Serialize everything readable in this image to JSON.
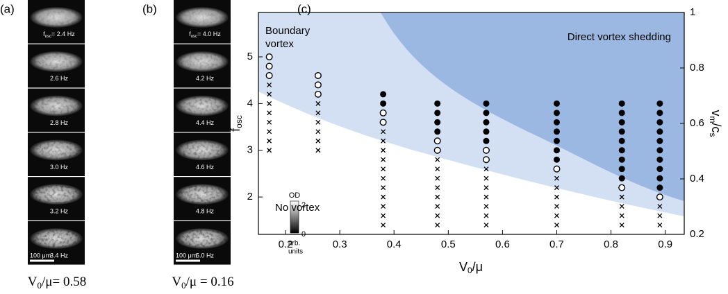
{
  "panels": {
    "a": {
      "label": "(a)",
      "first_label": {
        "symbol": "f",
        "sub": "osc",
        "text": "= 2.4 Hz"
      },
      "frame_labels": [
        "2.6 Hz",
        "2.8 Hz",
        "3.0 Hz",
        "3.2 Hz",
        "3.4 Hz"
      ],
      "scale_bar": "100 μm",
      "caption": {
        "symbol": "V",
        "sub": "0",
        "text": "/μ= 0.58"
      }
    },
    "b": {
      "label": "(b)",
      "first_label": {
        "symbol": "f",
        "sub": "osc",
        "text": "= 4.0 Hz"
      },
      "frame_labels": [
        "4.2 Hz",
        "4.4 Hz",
        "4.6 Hz",
        "4.8 Hz",
        "5.0 Hz"
      ],
      "scale_bar": "100 μm",
      "caption": {
        "symbol": "V",
        "sub": "0",
        "text": "/μ = 0.16"
      }
    },
    "colorbar": {
      "title": "OD",
      "max": "2",
      "min": "0",
      "unit1": "arb.",
      "unit2": "units"
    }
  },
  "chart_data": {
    "type": "scatter",
    "panel_label": "(c)",
    "xlabel": {
      "symbol": "V",
      "sub": "0",
      "text": "/μ"
    },
    "ylabel": {
      "symbol": "f",
      "sub": "osc"
    },
    "y2label": {
      "text1": "v",
      "sub1": "m",
      "text2": "/c",
      "sub2": "s"
    },
    "annotations": [
      "Boundary",
      "vortex",
      "Direct vortex shedding",
      "No vortex"
    ],
    "xlim": [
      0.15,
      0.935
    ],
    "xticks": [
      0.2,
      0.3,
      0.4,
      0.5,
      0.6,
      0.7,
      0.8,
      0.9
    ],
    "ylim": [
      1.2,
      5.95
    ],
    "yticks": [
      2,
      3,
      4,
      5
    ],
    "y2lim": [
      0.2,
      1
    ],
    "y2ticks": [
      0.2,
      0.4,
      0.6,
      0.8,
      1
    ],
    "series": [
      {
        "marker": "cross",
        "color": "#000",
        "x": [
          0.17,
          0.17,
          0.17,
          0.17,
          0.17,
          0.17,
          0.17,
          0.17,
          0.26,
          0.26,
          0.26,
          0.26,
          0.26,
          0.26,
          0.38,
          0.38,
          0.38,
          0.38,
          0.38,
          0.38,
          0.38,
          0.38,
          0.38,
          0.38,
          0.38,
          0.48,
          0.48,
          0.48,
          0.48,
          0.48,
          0.48,
          0.48,
          0.48,
          0.57,
          0.57,
          0.57,
          0.57,
          0.57,
          0.57,
          0.57,
          0.7,
          0.7,
          0.7,
          0.7,
          0.7,
          0.7,
          0.82,
          0.82,
          0.82,
          0.82,
          0.89,
          0.89,
          0.89
        ],
        "values": [
          3,
          3.2,
          3.4,
          3.6,
          3.8,
          4,
          4.2,
          4.4,
          3,
          3.2,
          3.4,
          3.6,
          3.8,
          4,
          1.4,
          1.6,
          1.8,
          2,
          2.2,
          2.4,
          2.6,
          2.8,
          3,
          3.2,
          3.4,
          1.4,
          1.6,
          1.8,
          2,
          2.2,
          2.4,
          2.6,
          2.8,
          1.4,
          1.6,
          1.8,
          2,
          2.2,
          2.4,
          2.6,
          1.4,
          1.6,
          1.8,
          2,
          2.2,
          2.4,
          1.4,
          1.6,
          1.8,
          2,
          1.4,
          1.6,
          1.8
        ]
      },
      {
        "marker": "open",
        "color": "#000",
        "x": [
          0.17,
          0.17,
          0.17,
          0.26,
          0.26,
          0.26,
          0.38,
          0.38,
          0.48,
          0.48,
          0.57,
          0.57,
          0.7,
          0.82,
          0.89
        ],
        "values": [
          4.6,
          4.8,
          5,
          4.2,
          4.4,
          4.6,
          3.6,
          3.8,
          3,
          3.2,
          2.8,
          3,
          2.6,
          2.2,
          2
        ]
      },
      {
        "marker": "filled",
        "color": "#000",
        "x": [
          0.38,
          0.38,
          0.48,
          0.48,
          0.48,
          0.48,
          0.57,
          0.57,
          0.57,
          0.57,
          0.57,
          0.7,
          0.7,
          0.7,
          0.7,
          0.7,
          0.7,
          0.7,
          0.82,
          0.82,
          0.82,
          0.82,
          0.82,
          0.82,
          0.82,
          0.82,
          0.82,
          0.89,
          0.89,
          0.89,
          0.89,
          0.89,
          0.89,
          0.89,
          0.89,
          0.89,
          0.89
        ],
        "values": [
          4,
          4.2,
          3.4,
          3.6,
          3.8,
          4,
          3.2,
          3.4,
          3.6,
          3.8,
          4,
          2.8,
          3,
          3.2,
          3.4,
          3.6,
          3.8,
          4,
          2.4,
          2.6,
          2.8,
          3,
          3.2,
          3.4,
          3.6,
          3.8,
          4,
          2.2,
          2.4,
          2.6,
          2.8,
          3,
          3.2,
          3.4,
          3.6,
          3.8,
          4
        ]
      }
    ]
  }
}
